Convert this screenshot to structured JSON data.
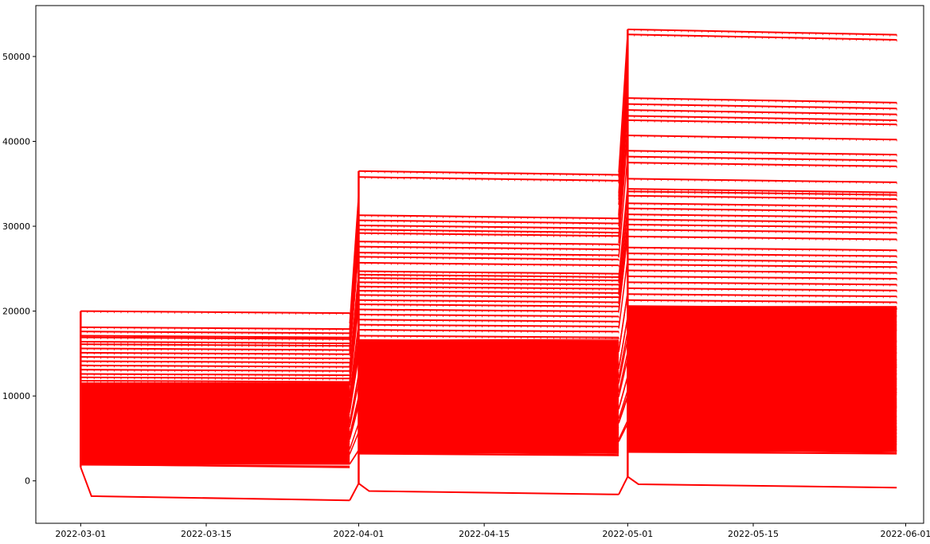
{
  "chart_data": {
    "type": "line",
    "title": "",
    "xlabel": "",
    "ylabel": "",
    "x_ticks": [
      "2022-03-01",
      "2022-03-15",
      "2022-04-01",
      "2022-04-15",
      "2022-05-01",
      "2022-05-15",
      "2022-06-01"
    ],
    "y_ticks": [
      0,
      10000,
      20000,
      30000,
      40000,
      50000
    ],
    "xlim": [
      "2022-02-24",
      "2022-06-03"
    ],
    "ylim": [
      -5000,
      56000
    ],
    "grid": false,
    "legend": "none",
    "line_color": "#ff0000",
    "months": [
      {
        "start": "2022-03-01",
        "end": "2022-03-31"
      },
      {
        "start": "2022-04-01",
        "end": "2022-04-30"
      },
      {
        "start": "2022-05-01",
        "end": "2022-05-31"
      }
    ],
    "series_levels": {
      "2022-03": {
        "upper": [
          20000,
          18100,
          17600,
          17100,
          16900,
          16400,
          16100,
          15600,
          15100,
          14600,
          14100,
          13600,
          13100,
          12600,
          12200,
          11800
        ],
        "dense_band": [
          1900,
          11600
        ],
        "lowest": [
          1600,
          -1800,
          -2300
        ]
      },
      "2022-04": {
        "upper": [
          36500,
          35800,
          31300,
          30700,
          30100,
          29600,
          29200,
          28200,
          27600,
          26900,
          26400,
          25700,
          24700,
          24300,
          23900,
          23400,
          22900,
          22400,
          21900,
          21300,
          20800,
          20200,
          19600,
          19000,
          18400,
          17800,
          17100,
          16600
        ],
        "dense_band": [
          3200,
          16600
        ],
        "lowest": [
          -300,
          -1200,
          -1600
        ]
      },
      "2022-05": {
        "upper": [
          53200,
          52600,
          45100,
          44400,
          43700,
          43000,
          42500,
          40700,
          38900,
          38200,
          37500,
          35600,
          34400,
          34100,
          33600,
          32700,
          32100,
          31400,
          30800,
          30200,
          29600,
          28800,
          27500,
          26800,
          26100,
          25500,
          24800,
          24100,
          23400,
          22700,
          22000,
          21300,
          20600
        ],
        "dense_band": [
          3400,
          20600
        ],
        "lowest": [
          500,
          -400,
          -800
        ]
      }
    }
  }
}
